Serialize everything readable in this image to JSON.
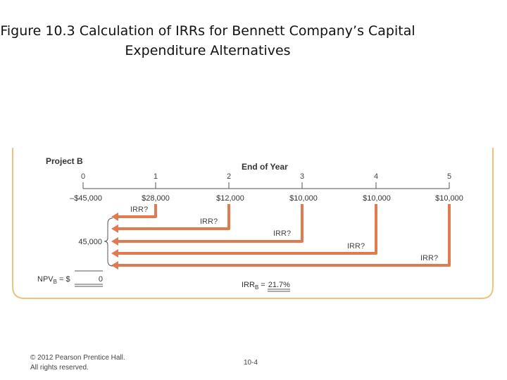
{
  "slide": {
    "title_line1": "Figure 10.3 Calculation of IRRs for Bennett Company’s Capital",
    "title_line2": "Expenditure Alternatives",
    "copyright_line1": "© 2012 Pearson Prentice Hall.",
    "copyright_line2": "All rights reserved.",
    "page_number": "10-4"
  },
  "figure": {
    "project_label": "Project B",
    "end_of_year_label": "End of Year",
    "years": [
      "0",
      "1",
      "2",
      "3",
      "4",
      "5"
    ],
    "cash_flows": [
      "–$45,000",
      "$28,000",
      "$12,000",
      "$10,000",
      "$10,000",
      "$10,000"
    ],
    "irr_question": "IRR?",
    "pv_total": "45,000",
    "npv_label": "NPV",
    "npv_subscript": "B",
    "npv_equals": "= $",
    "npv_value": "0",
    "irr_result_label": "IRR",
    "irr_result_subscript": "B",
    "irr_result_equals": "=",
    "irr_result_value": "21.7%",
    "accent_color": "#e07a4f",
    "border_color": "#f2c078"
  }
}
